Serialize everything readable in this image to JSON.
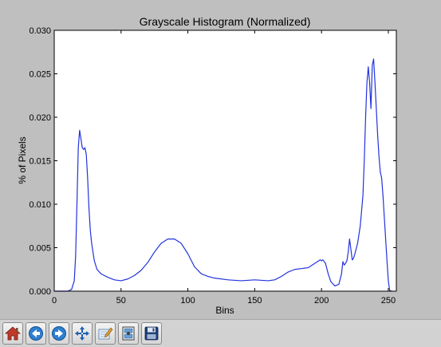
{
  "toolbar": {
    "buttons": [
      {
        "icon": "home-icon"
      },
      {
        "icon": "back-arrow-icon"
      },
      {
        "icon": "forward-arrow-icon"
      },
      {
        "icon": "pan-move-icon"
      },
      {
        "icon": "zoom-rectangle-icon"
      },
      {
        "icon": "configure-subplots-icon"
      },
      {
        "icon": "save-floppy-icon"
      }
    ]
  },
  "colors": {
    "figure_background": "#bfbfbf",
    "axes_background": "#ffffff",
    "line": "#2233dd"
  },
  "chart_data": {
    "type": "line",
    "title": "Grayscale Histogram (Normalized)",
    "xlabel": "Bins",
    "ylabel": "% of Pixels",
    "xlim": [
      0,
      256
    ],
    "ylim": [
      0,
      0.03
    ],
    "x_ticks": [
      0,
      50,
      100,
      150,
      200,
      250
    ],
    "x_tick_labels": [
      "0",
      "50",
      "100",
      "150",
      "200",
      "250"
    ],
    "y_ticks": [
      0,
      0.005,
      0.01,
      0.015,
      0.02,
      0.025,
      0.03
    ],
    "y_tick_labels": [
      "0.000",
      "0.005",
      "0.010",
      "0.015",
      "0.020",
      "0.025",
      "0.030"
    ],
    "grid": false,
    "legend": "none",
    "series": [
      {
        "x": [
          0,
          10,
          13,
          15,
          16,
          17,
          18,
          19,
          20,
          21,
          22,
          23,
          24,
          25,
          26,
          27,
          28,
          30,
          32,
          35,
          40,
          45,
          50,
          55,
          60,
          65,
          70,
          75,
          80,
          85,
          90,
          95,
          100,
          105,
          110,
          115,
          120,
          130,
          140,
          150,
          160,
          165,
          170,
          175,
          180,
          185,
          190,
          195,
          199,
          200,
          201,
          203,
          205,
          207,
          210,
          213,
          215,
          216,
          217,
          218,
          219,
          220,
          221,
          222,
          223,
          224,
          225,
          227,
          229,
          231,
          232,
          233,
          234,
          235,
          236,
          237,
          238,
          239,
          240,
          241,
          242,
          243,
          244,
          245,
          246,
          247,
          248,
          249,
          250,
          251,
          252,
          253
        ],
        "y": [
          0,
          0,
          0.0002,
          0.0012,
          0.004,
          0.01,
          0.0165,
          0.0185,
          0.0175,
          0.0165,
          0.0163,
          0.0165,
          0.0157,
          0.013,
          0.0095,
          0.007,
          0.0055,
          0.0035,
          0.0025,
          0.002,
          0.0016,
          0.0013,
          0.0012,
          0.0014,
          0.0018,
          0.0024,
          0.0033,
          0.0045,
          0.0055,
          0.006,
          0.006,
          0.0055,
          0.0043,
          0.0028,
          0.002,
          0.0017,
          0.0015,
          0.0013,
          0.0012,
          0.0013,
          0.0012,
          0.0013,
          0.0017,
          0.0022,
          0.0025,
          0.0026,
          0.0027,
          0.0032,
          0.0036,
          0.0035,
          0.0036,
          0.0032,
          0.002,
          0.0011,
          0.0006,
          0.0008,
          0.002,
          0.0034,
          0.003,
          0.0032,
          0.0035,
          0.0045,
          0.006,
          0.0048,
          0.0036,
          0.0038,
          0.0043,
          0.0055,
          0.0075,
          0.011,
          0.015,
          0.02,
          0.024,
          0.0258,
          0.024,
          0.021,
          0.026,
          0.0267,
          0.024,
          0.021,
          0.018,
          0.0155,
          0.0137,
          0.013,
          0.011,
          0.0085,
          0.006,
          0.0035,
          0.0012,
          0.0001,
          0,
          0
        ]
      }
    ]
  }
}
